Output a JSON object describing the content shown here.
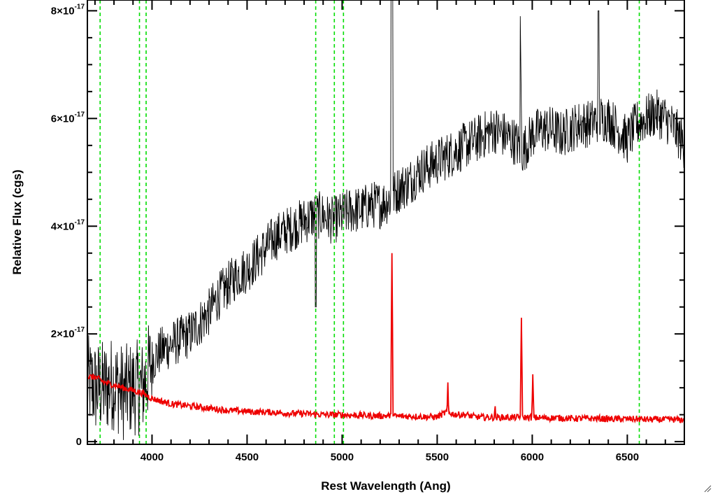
{
  "chart_data": {
    "type": "line",
    "title": "",
    "xlabel": "Rest Wavelength (Ang)",
    "ylabel": "Relative Flux (cgs)",
    "xlim": [
      3660,
      6800
    ],
    "ylim": [
      -0.05,
      8.2
    ],
    "y_scale_exponent": -17,
    "x_ticks": [
      4000,
      4500,
      5000,
      5500,
      6000,
      6500
    ],
    "x_tick_labels": [
      "4000",
      "4500",
      "5000",
      "5500",
      "6000",
      "6500"
    ],
    "y_ticks": [
      0,
      2,
      4,
      6,
      8
    ],
    "y_tick_labels": [
      {
        "mantissa": "0",
        "exponent": ""
      },
      {
        "mantissa": "2×10",
        "exponent": "-17"
      },
      {
        "mantissa": "4×10",
        "exponent": "-17"
      },
      {
        "mantissa": "6×10",
        "exponent": "-17"
      },
      {
        "mantissa": "8×10",
        "exponent": "-17"
      }
    ],
    "x_minor_step": 100,
    "y_minor_step": 0.5,
    "grid": false,
    "line_markers": {
      "color": "#00dd00",
      "style": "dashed",
      "x": [
        3727,
        3934,
        3969,
        4861,
        4959,
        5007,
        6563
      ]
    },
    "series": [
      {
        "color": "#000000",
        "x": [
          3660,
          3700,
          3750,
          3800,
          3850,
          3900,
          3950,
          4000,
          4050,
          4100,
          4150,
          4200,
          4250,
          4300,
          4350,
          4400,
          4450,
          4500,
          4550,
          4600,
          4650,
          4700,
          4750,
          4800,
          4850,
          4900,
          4950,
          5000,
          5050,
          5100,
          5150,
          5200,
          5250,
          5300,
          5350,
          5400,
          5450,
          5500,
          5550,
          5600,
          5650,
          5700,
          5750,
          5800,
          5850,
          5900,
          5950,
          6000,
          6050,
          6100,
          6150,
          6200,
          6250,
          6300,
          6350,
          6400,
          6450,
          6500,
          6550,
          6600,
          6650,
          6700,
          6750,
          6800
        ],
        "values": [
          1.1,
          1.0,
          1.0,
          1.1,
          0.9,
          1.0,
          1.0,
          1.5,
          1.7,
          1.8,
          1.9,
          2.0,
          2.2,
          2.4,
          2.7,
          2.9,
          3.1,
          3.2,
          3.4,
          3.6,
          3.8,
          3.9,
          4.0,
          4.1,
          4.2,
          4.2,
          4.1,
          4.2,
          4.3,
          4.3,
          4.4,
          4.4,
          4.5,
          4.7,
          4.8,
          5.0,
          5.1,
          5.2,
          5.3,
          5.4,
          5.5,
          5.6,
          5.7,
          5.8,
          5.7,
          5.6,
          5.4,
          5.7,
          5.8,
          5.8,
          5.7,
          5.8,
          5.9,
          5.9,
          6.0,
          6.0,
          5.8,
          5.6,
          5.9,
          6.0,
          6.1,
          6.0,
          5.8,
          5.5
        ]
      },
      {
        "color": "#ee0000",
        "x": [
          3660,
          3700,
          3750,
          3800,
          3850,
          3900,
          3950,
          4000,
          4050,
          4100,
          4150,
          4200,
          4250,
          4300,
          4350,
          4400,
          4450,
          4500,
          4550,
          4600,
          4650,
          4700,
          4750,
          4800,
          4850,
          4900,
          4950,
          5000,
          5050,
          5100,
          5150,
          5200,
          5250,
          5300,
          5350,
          5400,
          5450,
          5500,
          5550,
          5600,
          5650,
          5700,
          5750,
          5800,
          5850,
          5900,
          5950,
          6000,
          6050,
          6100,
          6150,
          6200,
          6250,
          6300,
          6350,
          6400,
          6450,
          6500,
          6550,
          6600,
          6650,
          6700,
          6750,
          6800
        ],
        "values": [
          1.2,
          1.2,
          1.1,
          1.05,
          1.0,
          0.95,
          0.9,
          0.8,
          0.75,
          0.7,
          0.68,
          0.66,
          0.64,
          0.62,
          0.6,
          0.58,
          0.57,
          0.56,
          0.55,
          0.55,
          0.54,
          0.53,
          0.52,
          0.52,
          0.51,
          0.5,
          0.5,
          0.5,
          0.49,
          0.49,
          0.48,
          0.48,
          0.48,
          0.47,
          0.47,
          0.47,
          0.46,
          0.46,
          0.55,
          0.5,
          0.5,
          0.46,
          0.45,
          0.45,
          0.45,
          0.45,
          0.45,
          0.45,
          0.44,
          0.44,
          0.44,
          0.43,
          0.43,
          0.43,
          0.43,
          0.42,
          0.42,
          0.42,
          0.42,
          0.41,
          0.41,
          0.41,
          0.41,
          0.4
        ]
      }
    ],
    "emission_lines": [
      {
        "x": 5262,
        "peak": 3.5
      },
      {
        "x": 5556,
        "peak": 1.1
      },
      {
        "x": 5943,
        "peak": 2.3
      },
      {
        "x": 6003,
        "peak": 1.25
      },
      {
        "x": 5804,
        "peak": 0.75
      },
      {
        "x": 4889,
        "peak": 0.5
      }
    ]
  }
}
